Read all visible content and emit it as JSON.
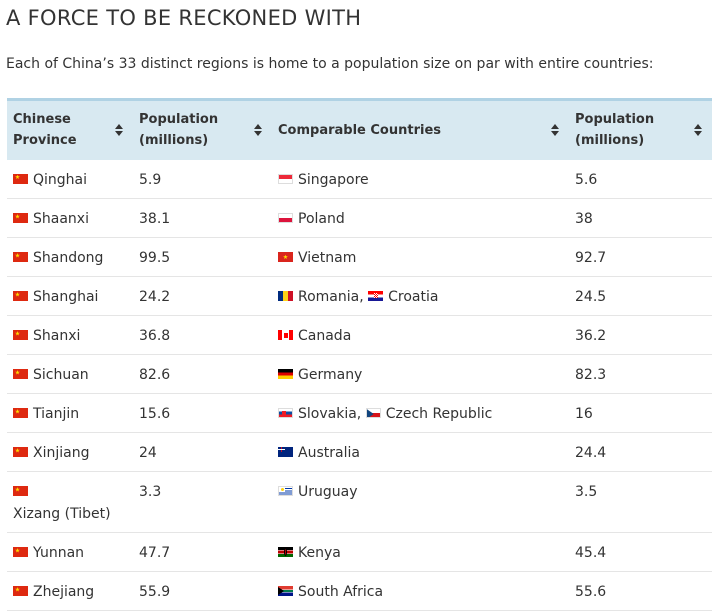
{
  "title": "A FORCE TO BE RECKONED WITH",
  "subtitle": "Each of China’s 33 distinct regions is home to a population size on par with entire countries:",
  "table": {
    "headers": [
      {
        "line1": "Chinese",
        "line2": "Province"
      },
      {
        "line1": "Population",
        "line2": "(millions)"
      },
      {
        "line1": "Comparable Countries",
        "line2": ""
      },
      {
        "line1": "Population",
        "line2": "(millions)"
      }
    ],
    "rows": [
      {
        "province": "Qinghai",
        "pop": "5.9",
        "countries": [
          {
            "name": "Singapore",
            "flag": "singapore-flag"
          }
        ],
        "country_pop": "5.6"
      },
      {
        "province": "Shaanxi",
        "pop": "38.1",
        "countries": [
          {
            "name": "Poland",
            "flag": "poland-flag"
          }
        ],
        "country_pop": "38"
      },
      {
        "province": "Shandong",
        "pop": "99.5",
        "countries": [
          {
            "name": "Vietnam",
            "flag": "vietnam-flag"
          }
        ],
        "country_pop": "92.7"
      },
      {
        "province": "Shanghai",
        "pop": "24.2",
        "countries": [
          {
            "name": "Romania",
            "flag": "romania-flag"
          },
          {
            "name": "Croatia",
            "flag": "croatia-flag"
          }
        ],
        "country_pop": "24.5"
      },
      {
        "province": "Shanxi",
        "pop": "36.8",
        "countries": [
          {
            "name": "Canada",
            "flag": "canada-flag"
          }
        ],
        "country_pop": "36.2"
      },
      {
        "province": "Sichuan",
        "pop": "82.6",
        "countries": [
          {
            "name": "Germany",
            "flag": "germany-flag"
          }
        ],
        "country_pop": "82.3"
      },
      {
        "province": "Tianjin",
        "pop": "15.6",
        "countries": [
          {
            "name": "Slovakia",
            "flag": "slovakia-flag"
          },
          {
            "name": "Czech Republic",
            "flag": "czech-flag"
          }
        ],
        "country_pop": "16"
      },
      {
        "province": "Xinjiang",
        "pop": "24",
        "countries": [
          {
            "name": "Australia",
            "flag": "australia-flag"
          }
        ],
        "country_pop": "24.4"
      },
      {
        "province": "Xizang (Tibet)",
        "pop": "3.3",
        "countries": [
          {
            "name": "Uruguay",
            "flag": "uruguay-flag"
          }
        ],
        "country_pop": "3.5",
        "wrap": true
      },
      {
        "province": "Yunnan",
        "pop": "47.7",
        "countries": [
          {
            "name": "Kenya",
            "flag": "kenya-flag"
          }
        ],
        "country_pop": "45.4"
      },
      {
        "province": "Zhejiang",
        "pop": "55.9",
        "countries": [
          {
            "name": "South Africa",
            "flag": "south-africa-flag"
          }
        ],
        "country_pop": "55.6"
      }
    ]
  },
  "colors": {
    "header_bg": "#d8e9f1",
    "header_border": "#b0d2e4",
    "row_border": "#e5e5e5"
  },
  "icons": {
    "province_flag": "china-flag",
    "sort": "sort-arrows-icon"
  }
}
